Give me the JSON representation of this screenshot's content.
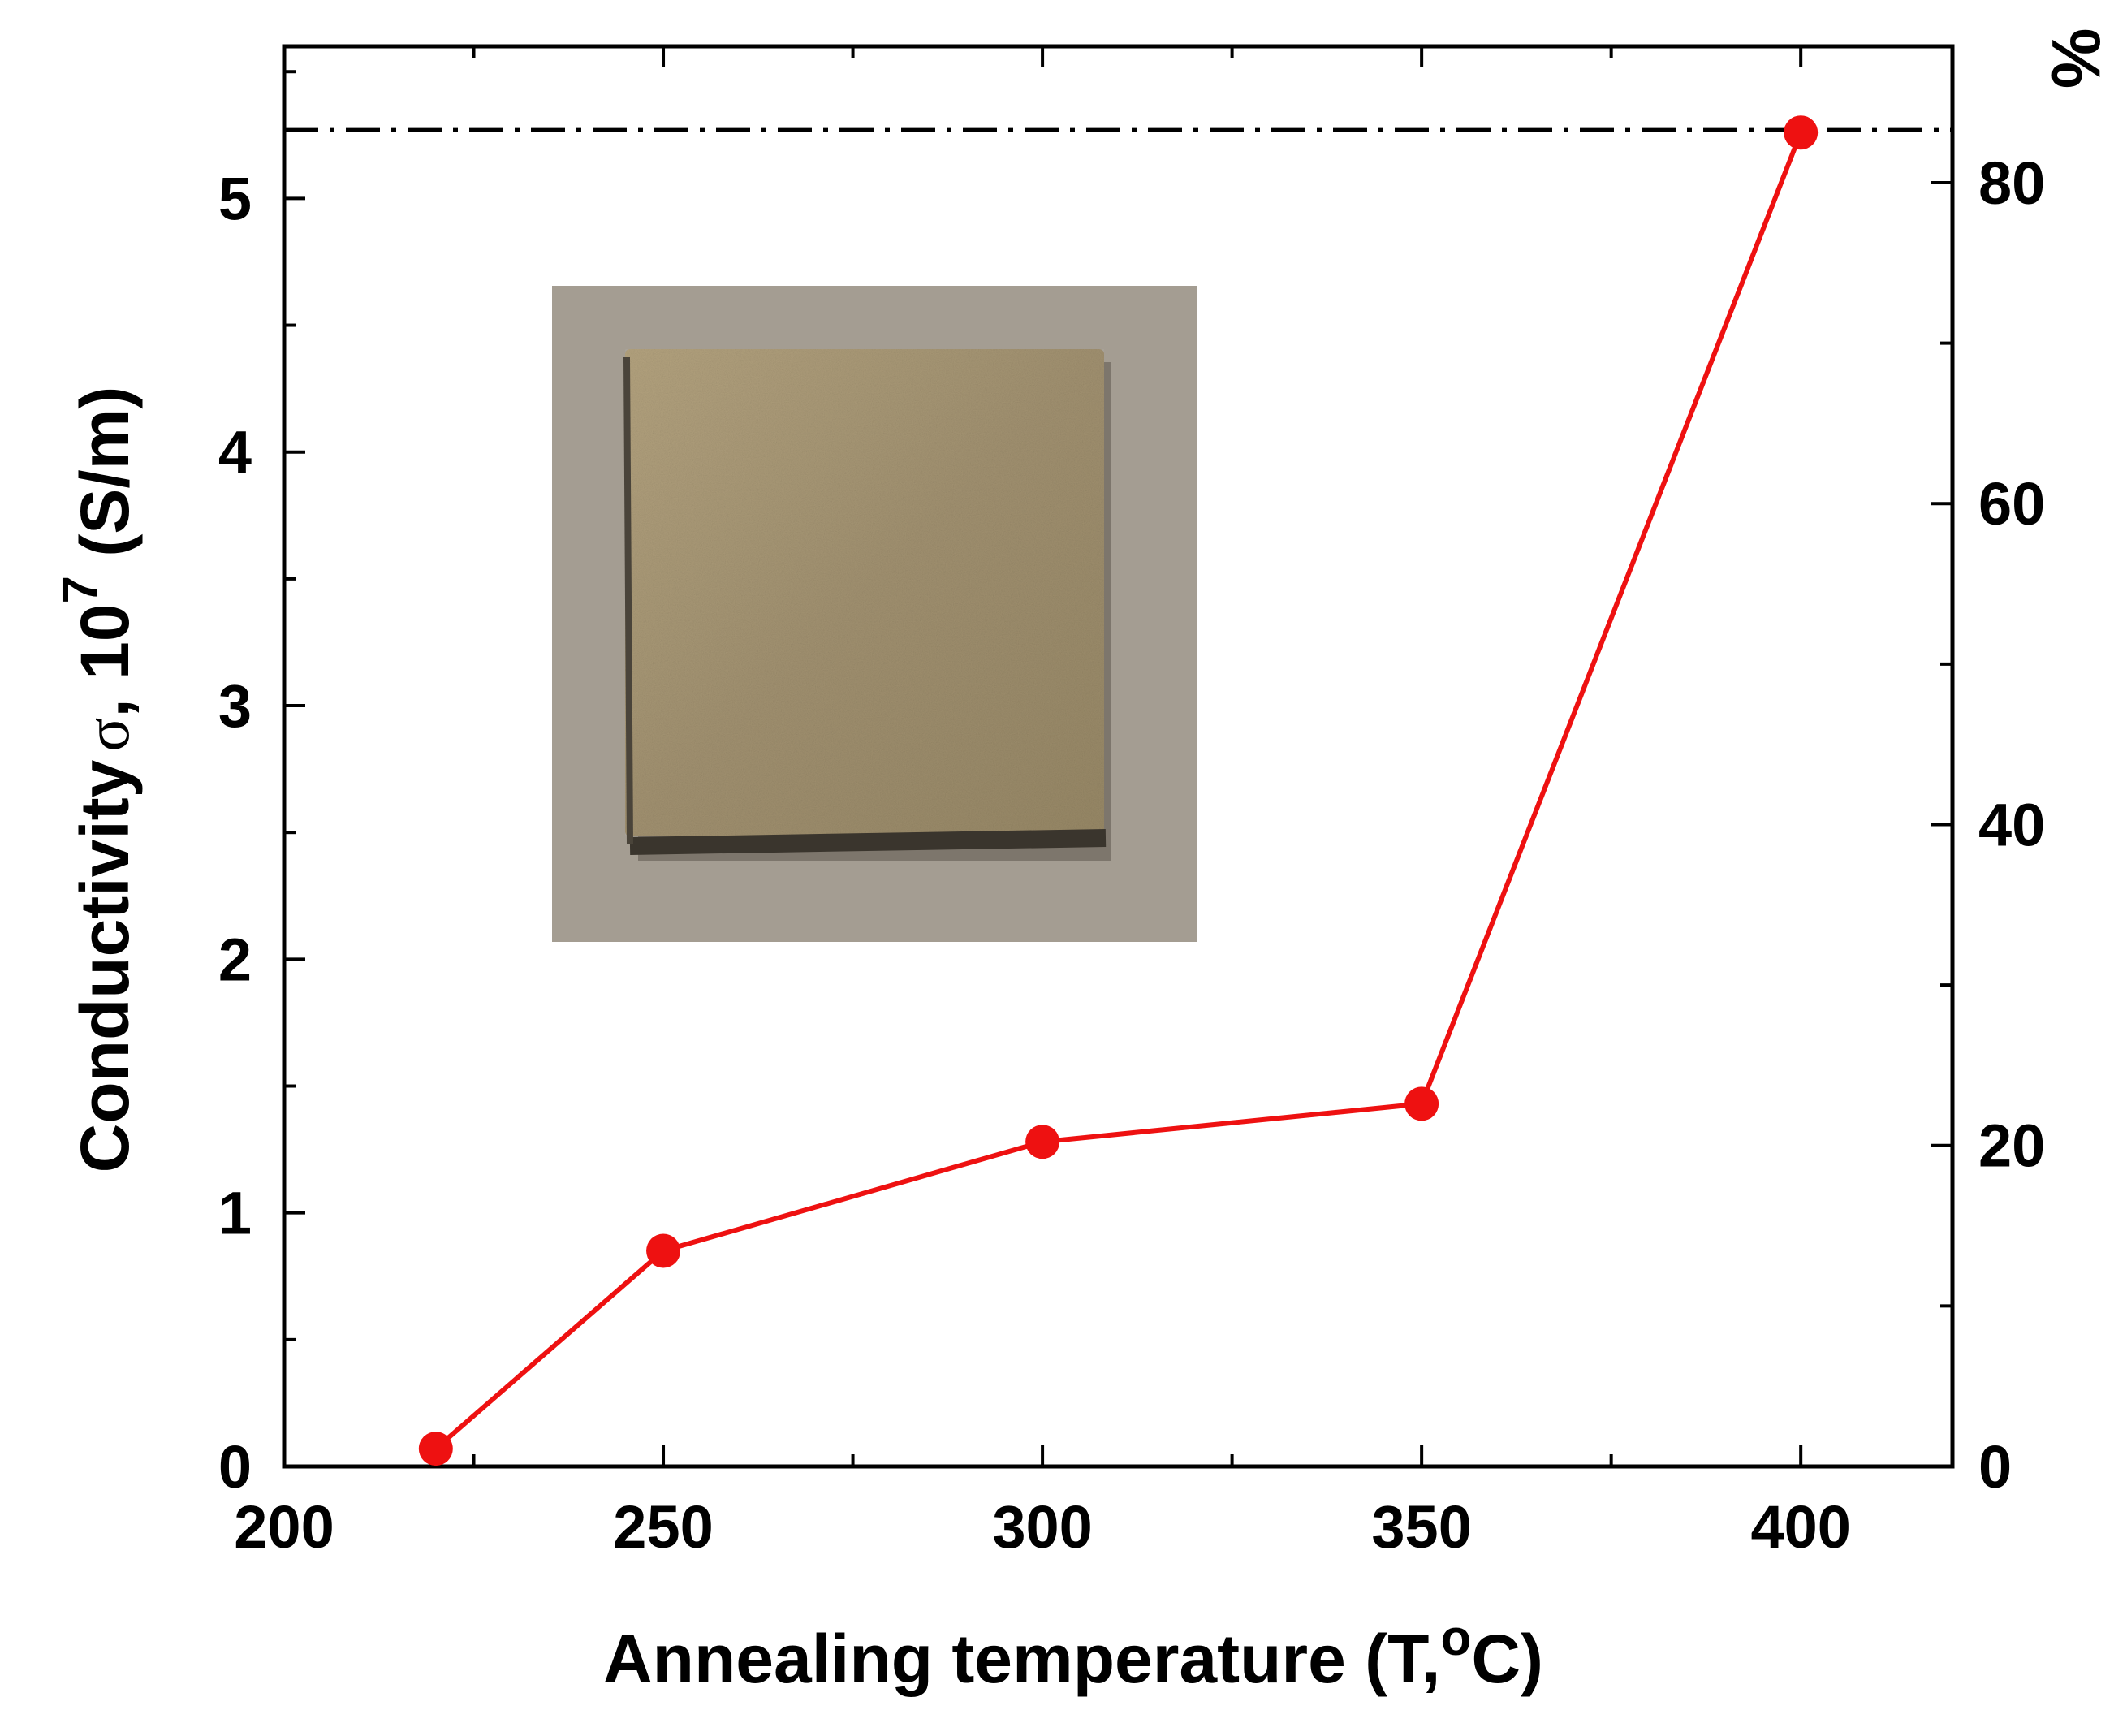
{
  "chart_data": {
    "type": "line",
    "title": "",
    "xlabel": "Annealing temperature (T,°C)",
    "xlabel_parts": {
      "before": "Annealing temperature (T,",
      "degree": "o",
      "after": "C)"
    },
    "ylabel": "Conductivity σ, 10^7 (S/m)",
    "ylabel_parts": {
      "prefix": "Conductivity",
      "sigma": "σ",
      "mid": ", 10",
      "exponent": "7",
      "suffix": " (S/m)"
    },
    "y2label": "%",
    "xlim": [
      200,
      420
    ],
    "ylim": [
      0,
      5.6
    ],
    "y2lim": [
      0,
      88.5
    ],
    "x_major_ticks": [
      200,
      250,
      300,
      350,
      400
    ],
    "x_minor_ticks": [
      225,
      275,
      325,
      375
    ],
    "y_major_ticks": [
      0,
      1,
      2,
      3,
      4,
      5
    ],
    "y_minor_ticks": [
      0.5,
      1.5,
      2.5,
      3.5,
      4.5,
      5.5
    ],
    "y2_major_ticks": [
      0,
      20,
      40,
      60,
      80
    ],
    "y2_minor_ticks": [
      10,
      30,
      50,
      70
    ],
    "x_tick_labels": [
      "200",
      "250",
      "300",
      "350",
      "400"
    ],
    "y_tick_labels": [
      "0",
      "1",
      "2",
      "3",
      "4",
      "5"
    ],
    "y2_tick_labels": [
      "0",
      "20",
      "40",
      "60",
      "80"
    ],
    "series": [
      {
        "name": "Conductivity",
        "color": "#ee1111",
        "x": [
          220,
          250,
          300,
          350,
          400
        ],
        "y": [
          0.07,
          0.85,
          1.28,
          1.43,
          5.26
        ]
      }
    ],
    "reference_line": {
      "y": 5.27,
      "style": "dash-dot",
      "color": "#000000"
    },
    "inset": {
      "type": "photo",
      "subject": "square metallic sample",
      "background_color": "#a49d92",
      "sample_color": "#a69472"
    },
    "grid": false,
    "legend": "none"
  }
}
